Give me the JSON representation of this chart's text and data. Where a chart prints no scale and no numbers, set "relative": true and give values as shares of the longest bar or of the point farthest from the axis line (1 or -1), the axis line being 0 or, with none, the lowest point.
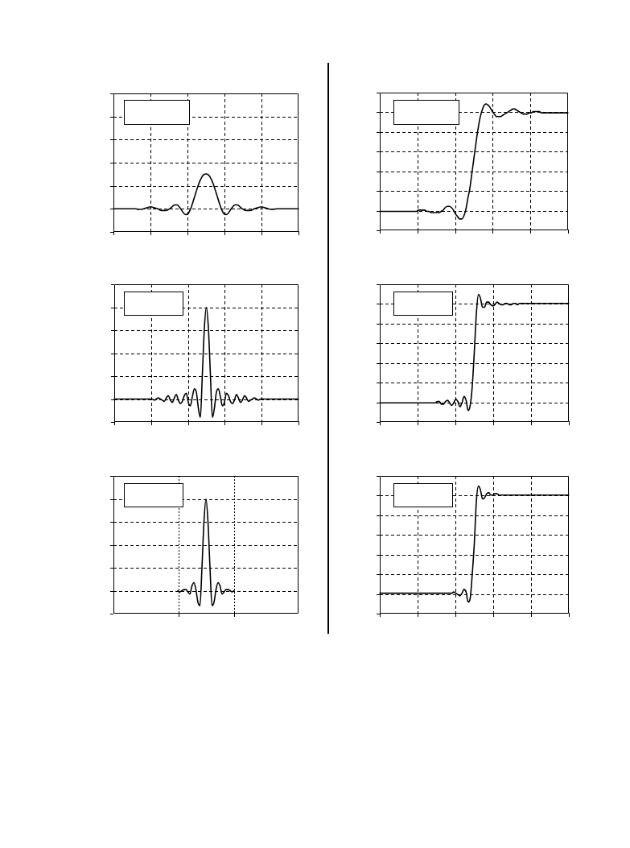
{
  "chart_data": [
    {
      "type": "line",
      "relative": true,
      "grid": true,
      "tick_labels": false,
      "color": "#000000",
      "categories": [
        null,
        null,
        null,
        null,
        null,
        null,
        null,
        null,
        null,
        null,
        null,
        null,
        null,
        null,
        null,
        null,
        null,
        null,
        null,
        null,
        null,
        null,
        null,
        null,
        null,
        null,
        null,
        null,
        null,
        null,
        null,
        null,
        null,
        null,
        null,
        null,
        null,
        null,
        null,
        null,
        null,
        null,
        null,
        null,
        null,
        null,
        null,
        null,
        null,
        null,
        null,
        null,
        null,
        null,
        null,
        null,
        null,
        null,
        null,
        null,
        null,
        null,
        null,
        null,
        null,
        null,
        null,
        null,
        null,
        null,
        null,
        null,
        null,
        null,
        null,
        null,
        null,
        null,
        null,
        null,
        null,
        null,
        null,
        null,
        null,
        null,
        null,
        null,
        null,
        null,
        null,
        null,
        null
      ],
      "values": [
        0.4,
        0.4,
        0.4,
        0.4,
        0.4,
        0.4,
        0.4,
        0.4,
        0.4,
        0.4,
        0.4,
        0.4,
        0.39,
        0.39,
        0.39,
        0.4,
        0.41,
        0.42,
        0.43,
        0.43,
        0.42,
        0.41,
        0.4,
        0.38,
        0.37,
        0.37,
        0.37,
        0.38,
        0.4,
        0.43,
        0.46,
        0.47,
        0.46,
        0.42,
        0.37,
        0.32,
        0.3,
        0.31,
        0.37,
        0.46,
        0.57,
        0.68,
        0.79,
        0.88,
        0.95,
        0.99,
        1,
        0.99,
        0.95,
        0.88,
        0.79,
        0.68,
        0.57,
        0.46,
        0.37,
        0.31,
        0.3,
        0.32,
        0.37,
        0.42,
        0.46,
        0.47,
        0.46,
        0.43,
        0.4,
        0.38,
        0.37,
        0.37,
        0.37,
        0.38,
        0.4,
        0.41,
        0.42,
        0.43,
        0.43,
        0.42,
        0.41,
        0.4,
        0.39,
        0.39,
        0.39,
        0.4,
        0.4,
        0.4,
        0.4,
        0.4,
        0.4,
        0.4,
        0.4,
        0.4,
        0.4,
        0.4,
        0.4
      ]
    },
    {
      "type": "line",
      "relative": true,
      "grid": true,
      "tick_labels": false,
      "color": "#000000",
      "categories": [
        null,
        null,
        null,
        null,
        null,
        null,
        null,
        null,
        null,
        null,
        null,
        null,
        null,
        null,
        null,
        null,
        null,
        null,
        null,
        null,
        null,
        null,
        null,
        null,
        null,
        null,
        null,
        null,
        null,
        null,
        null,
        null,
        null,
        null,
        null,
        null,
        null,
        null,
        null,
        null,
        null,
        null,
        null,
        null,
        null,
        null,
        null,
        null,
        null,
        null,
        null,
        null,
        null,
        null,
        null,
        null,
        null,
        null,
        null,
        null,
        null,
        null,
        null,
        null,
        null,
        null,
        null,
        null,
        null,
        null,
        null,
        null,
        null,
        null,
        null,
        null,
        null,
        null,
        null,
        null,
        null,
        null,
        null,
        null,
        null,
        null,
        null,
        null,
        null,
        null,
        null,
        null,
        null
      ],
      "values": [
        0.15,
        0.15,
        0.15,
        0.15,
        0.15,
        0.15,
        0.15,
        0.15,
        0.15,
        0.15,
        0.15,
        0.15,
        0.15,
        0.15,
        0.15,
        0.15,
        0.15,
        0.15,
        0.15,
        0.16,
        0.16,
        0.16,
        0.16,
        0.15,
        0.15,
        0.14,
        0.14,
        0.14,
        0.14,
        0.14,
        0.15,
        0.16,
        0.18,
        0.19,
        0.19,
        0.18,
        0.16,
        0.13,
        0.11,
        0.09,
        0.09,
        0.11,
        0.16,
        0.25,
        0.33,
        0.45,
        0.57,
        0.69,
        0.8,
        0.89,
        0.95,
        0.99,
        1,
        0.99,
        0.97,
        0.94,
        0.92,
        0.9,
        0.9,
        0.9,
        0.91,
        0.92,
        0.93,
        0.94,
        0.95,
        0.96,
        0.96,
        0.95,
        0.94,
        0.93,
        0.92,
        0.92,
        0.92,
        0.93,
        0.93,
        0.94,
        0.94,
        0.94,
        0.94,
        0.93,
        0.93,
        0.93,
        0.93,
        0.93,
        0.93,
        0.93,
        0.93,
        0.93,
        0.93,
        0.93,
        0.93,
        0.93,
        0.93
      ]
    },
    {
      "type": "line",
      "relative": true,
      "grid": true,
      "tick_labels": false,
      "color": "#000000",
      "categories": [
        null,
        null,
        null,
        null,
        null,
        null,
        null,
        null,
        null,
        null,
        null,
        null,
        null,
        null,
        null,
        null,
        null,
        null,
        null,
        null,
        null,
        null,
        null,
        null,
        null,
        null,
        null,
        null,
        null,
        null,
        null,
        null,
        null,
        null,
        null,
        null,
        null,
        null,
        null,
        null,
        null,
        null,
        null,
        null,
        null,
        null,
        null,
        null,
        null,
        null,
        null,
        null,
        null,
        null,
        null,
        null,
        null,
        null,
        null,
        null,
        null,
        null,
        null,
        null,
        null,
        null,
        null,
        null,
        null,
        null,
        null,
        null,
        null,
        null,
        null,
        null,
        null,
        null,
        null,
        null,
        null,
        null,
        null,
        null,
        null,
        null,
        null,
        null,
        null,
        null,
        null,
        null,
        null
      ],
      "values": [
        0.2,
        0.2,
        0.2,
        0.2,
        0.2,
        0.2,
        0.2,
        0.2,
        0.2,
        0.2,
        0.2,
        0.2,
        0.2,
        0.2,
        0.2,
        0.2,
        0.2,
        0.2,
        0.2,
        0.2,
        0.19,
        0.2,
        0.21,
        0.2,
        0.19,
        0.18,
        0.21,
        0.23,
        0.19,
        0.17,
        0.21,
        0.24,
        0.19,
        0.16,
        0.18,
        0.23,
        0.25,
        0.17,
        0.14,
        0.22,
        0.29,
        0.26,
        0.12,
        0.04,
        0.42,
        0.82,
        1,
        0.82,
        0.42,
        0.04,
        0.12,
        0.26,
        0.29,
        0.22,
        0.14,
        0.17,
        0.25,
        0.23,
        0.18,
        0.16,
        0.19,
        0.24,
        0.21,
        0.17,
        0.19,
        0.23,
        0.21,
        0.18,
        0.19,
        0.2,
        0.21,
        0.2,
        0.19,
        0.2,
        0.2,
        0.2,
        0.2,
        0.2,
        0.2,
        0.2,
        0.2,
        0.2,
        0.2,
        0.2,
        0.2,
        0.2,
        0.2,
        0.2,
        0.2,
        0.2,
        0.2,
        0.2,
        0.2
      ]
    },
    {
      "type": "line",
      "relative": true,
      "grid": true,
      "tick_labels": false,
      "color": "#000000",
      "categories": [
        null,
        null,
        null,
        null,
        null,
        null,
        null,
        null,
        null,
        null,
        null,
        null,
        null,
        null,
        null,
        null,
        null,
        null,
        null,
        null,
        null,
        null,
        null,
        null,
        null,
        null,
        null,
        null,
        null,
        null,
        null,
        null,
        null,
        null,
        null,
        null,
        null,
        null,
        null,
        null,
        null,
        null,
        null,
        null,
        null,
        null,
        null,
        null,
        null,
        null,
        null,
        null,
        null,
        null,
        null,
        null,
        null,
        null,
        null,
        null,
        null,
        null,
        null,
        null,
        null,
        null,
        null,
        null,
        null,
        null,
        null,
        null,
        null,
        null,
        null,
        null,
        null,
        null,
        null,
        null,
        null,
        null,
        null,
        null,
        null,
        null,
        null,
        null,
        null,
        null,
        null,
        null,
        null
      ],
      "values": [
        0.15,
        0.15,
        0.15,
        0.15,
        0.15,
        0.15,
        0.15,
        0.15,
        0.15,
        0.15,
        0.15,
        0.15,
        0.15,
        0.15,
        0.15,
        0.15,
        0.15,
        0.15,
        0.15,
        0.15,
        0.15,
        0.15,
        0.15,
        0.15,
        0.15,
        0.15,
        0.15,
        0.15,
        0.16,
        0.16,
        0.14,
        0.14,
        0.16,
        0.17,
        0.15,
        0.13,
        0.15,
        0.18,
        0.16,
        0.12,
        0.15,
        0.2,
        0.17,
        0.09,
        0.13,
        0.28,
        0.55,
        0.85,
        1,
        0.97,
        0.9,
        0.9,
        0.94,
        0.94,
        0.92,
        0.91,
        0.92,
        0.94,
        0.93,
        0.92,
        0.92,
        0.93,
        0.93,
        0.92,
        0.92,
        0.93,
        0.93,
        0.92,
        0.93,
        0.93,
        0.93,
        0.93,
        0.93,
        0.93,
        0.93,
        0.93,
        0.93,
        0.93,
        0.93,
        0.93,
        0.93,
        0.93,
        0.93,
        0.93,
        0.93,
        0.93,
        0.93,
        0.93,
        0.93,
        0.93,
        0.93,
        0.93,
        0.93
      ]
    },
    {
      "type": "line",
      "relative": true,
      "grid": true,
      "tick_labels": false,
      "color": "#000000",
      "categories": [
        null,
        null,
        null,
        null,
        null,
        null,
        null,
        null,
        null,
        null,
        null,
        null,
        null,
        null,
        null,
        null,
        null,
        null,
        null,
        null,
        null,
        null,
        null,
        null,
        null,
        null,
        null,
        null,
        null,
        null,
        null,
        null,
        null,
        null,
        null,
        null,
        null,
        null,
        null,
        null,
        null,
        null,
        null,
        null,
        null,
        null,
        null,
        null,
        null,
        null,
        null,
        null,
        null,
        null,
        null,
        null,
        null,
        null,
        null,
        null,
        null,
        null,
        null,
        null,
        null,
        null,
        null,
        null,
        null,
        null,
        null,
        null,
        null,
        null,
        null,
        null,
        null,
        null,
        null,
        null,
        null,
        null,
        null,
        null,
        null,
        null,
        null,
        null,
        null,
        null,
        null,
        null,
        null
      ],
      "values": [
        null,
        null,
        null,
        null,
        null,
        null,
        null,
        null,
        null,
        null,
        null,
        null,
        null,
        null,
        null,
        null,
        null,
        null,
        null,
        null,
        null,
        null,
        null,
        null,
        null,
        null,
        null,
        null,
        null,
        null,
        null,
        null,
        0.2,
        0.19,
        0.2,
        0.21,
        0.21,
        0.19,
        0.17,
        0.24,
        0.27,
        0.21,
        0.1,
        0.07,
        0.4,
        0.8,
        1,
        0.8,
        0.4,
        0.07,
        0.1,
        0.21,
        0.27,
        0.24,
        0.17,
        0.19,
        0.21,
        0.21,
        0.2,
        0.19,
        0.2,
        null,
        null,
        null,
        null,
        null,
        null,
        null,
        null,
        null,
        null,
        null,
        null,
        null,
        null,
        null,
        null,
        null,
        null,
        null,
        null,
        null,
        null,
        null,
        null,
        null,
        null,
        null,
        null,
        null,
        null,
        null,
        null
      ]
    },
    {
      "type": "line",
      "relative": true,
      "grid": true,
      "tick_labels": false,
      "color": "#000000",
      "categories": [
        null,
        null,
        null,
        null,
        null,
        null,
        null,
        null,
        null,
        null,
        null,
        null,
        null,
        null,
        null,
        null,
        null,
        null,
        null,
        null,
        null,
        null,
        null,
        null,
        null,
        null,
        null,
        null,
        null,
        null,
        null,
        null,
        null,
        null,
        null,
        null,
        null,
        null,
        null,
        null,
        null,
        null,
        null,
        null,
        null,
        null,
        null,
        null,
        null,
        null,
        null,
        null,
        null,
        null,
        null,
        null,
        null,
        null,
        null,
        null,
        null,
        null,
        null,
        null,
        null,
        null,
        null,
        null,
        null,
        null,
        null,
        null,
        null,
        null,
        null,
        null,
        null,
        null,
        null,
        null,
        null,
        null,
        null,
        null,
        null,
        null,
        null,
        null,
        null,
        null,
        null,
        null,
        null
      ],
      "values": [
        0.16,
        0.16,
        0.16,
        0.16,
        0.16,
        0.16,
        0.16,
        0.16,
        0.16,
        0.16,
        0.16,
        0.16,
        0.16,
        0.16,
        0.16,
        0.16,
        0.16,
        0.16,
        0.16,
        0.16,
        0.16,
        0.16,
        0.16,
        0.16,
        0.16,
        0.16,
        0.16,
        0.16,
        0.16,
        0.16,
        0.16,
        0.16,
        0.16,
        0.16,
        0.16,
        0.16,
        0.17,
        0.16,
        0.15,
        0.14,
        0.16,
        0.19,
        0.17,
        0.09,
        0.12,
        0.31,
        0.55,
        0.88,
        1,
        0.97,
        0.9,
        0.91,
        0.94,
        0.95,
        0.93,
        0.93,
        0.94,
        0.94,
        0.93,
        0.93,
        0.93,
        0.93,
        0.93,
        0.93,
        0.93,
        0.93,
        0.93,
        0.93,
        0.93,
        0.93,
        0.93,
        0.93,
        0.93,
        0.93,
        0.93,
        0.93,
        0.93,
        0.93,
        0.93,
        0.93,
        0.93,
        0.93,
        0.93,
        0.93,
        0.93,
        0.93,
        0.93,
        0.93,
        0.93,
        0.93,
        0.93,
        0.93,
        0.93
      ]
    }
  ]
}
